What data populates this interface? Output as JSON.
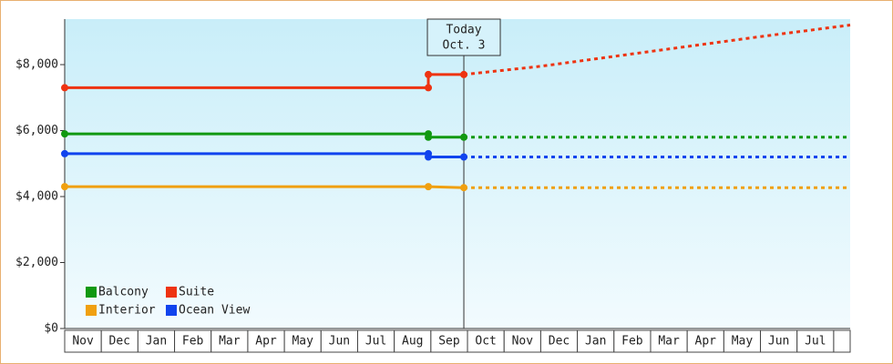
{
  "chart_data": {
    "type": "line",
    "categories": [
      "Nov",
      "Dec",
      "Jan",
      "Feb",
      "Mar",
      "Apr",
      "May",
      "Jun",
      "Jul",
      "Aug",
      "Sep",
      "Oct",
      "Nov",
      "Dec",
      "Jan",
      "Feb",
      "Mar",
      "Apr",
      "May",
      "Jun",
      "Jul"
    ],
    "xlim": [
      0,
      21.45
    ],
    "ylim": [
      0,
      9380
    ],
    "yticks": [
      {
        "value": 0,
        "label": "$0"
      },
      {
        "value": 2000,
        "label": "$2,000"
      },
      {
        "value": 4000,
        "label": "$4,000"
      },
      {
        "value": 6000,
        "label": "$6,000"
      },
      {
        "value": 8000,
        "label": "$8,000"
      }
    ],
    "annotation": {
      "x": 10.9,
      "lines": [
        "Today",
        "Oct. 3"
      ]
    },
    "legend": "lower left",
    "series": [
      {
        "name": "Balcony",
        "color": "#119911",
        "x": [
          0,
          9.93,
          9.93,
          10.9
        ],
        "values": [
          5900,
          5900,
          5800,
          5800
        ],
        "forecast": {
          "x": [
            10.9,
            21.45
          ],
          "values": [
            5800,
            5800
          ]
        }
      },
      {
        "name": "Suite",
        "color": "#ee3311",
        "x": [
          0,
          9.93,
          9.93,
          10.9
        ],
        "values": [
          7300,
          7300,
          7700,
          7700
        ],
        "forecast": {
          "x": [
            10.9,
            13,
            15,
            17,
            19,
            21.45
          ],
          "values": [
            7700,
            7950,
            8250,
            8550,
            8850,
            9200
          ]
        }
      },
      {
        "name": "Interior",
        "color": "#f0a010",
        "x": [
          0,
          9.93,
          10.9
        ],
        "values": [
          4300,
          4300,
          4270
        ],
        "forecast": {
          "x": [
            10.9,
            21.45
          ],
          "values": [
            4270,
            4270
          ]
        }
      },
      {
        "name": "Ocean View",
        "color": "#1144ee",
        "x": [
          0,
          9.93,
          9.93,
          10.9
        ],
        "values": [
          5300,
          5300,
          5200,
          5200
        ],
        "forecast": {
          "x": [
            10.9,
            21.45
          ],
          "values": [
            5200,
            5200
          ]
        }
      }
    ]
  }
}
